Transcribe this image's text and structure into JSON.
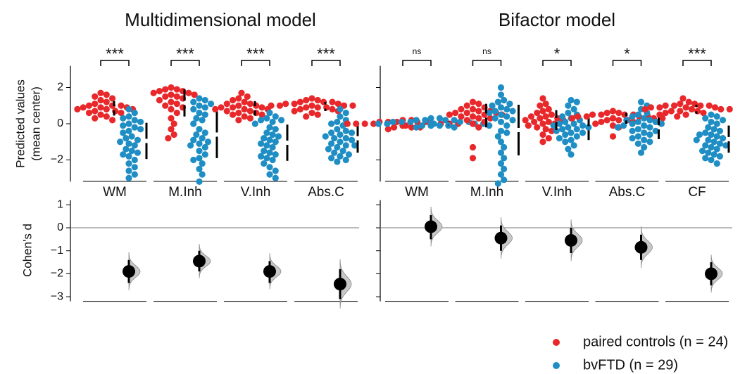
{
  "chart_data": {
    "type": "estimation",
    "legend_position": "bottom-right",
    "series": [
      {
        "name": "paired controls (n = 24)",
        "color": "#e8282b"
      },
      {
        "name": "bvFTD (n = 29)",
        "color": "#1f8ec4"
      }
    ],
    "top_ylabel": [
      "Predicted values",
      "(mean center)"
    ],
    "bottom_ylabel": "Cohen's d",
    "ylim": [
      -3.2,
      3.2
    ],
    "yticks": [
      {
        "value": -2,
        "label": "−2"
      },
      0,
      2
    ],
    "dlim": [
      -3.2,
      1.2
    ],
    "dticks": [
      1,
      0,
      {
        "value": -1,
        "label": "−1"
      },
      {
        "value": -2,
        "label": "−2"
      },
      {
        "value": -3,
        "label": "−3"
      }
    ],
    "panels": [
      {
        "title": "Multidimensional model",
        "categories": [
          "WM",
          "M.Inh",
          "V.Inh",
          "Abs.C"
        ],
        "significance": [
          "***",
          "***",
          "***",
          "***"
        ],
        "controls": [
          [
            1.7,
            1.6,
            1.5,
            1.4,
            1.3,
            1.2,
            1.1,
            1.0,
            1.0,
            0.9,
            0.9,
            0.9,
            0.8,
            0.8,
            0.8,
            0.7,
            0.7,
            0.6,
            0.6,
            0.5,
            0.4,
            0.3,
            0.2,
            1.0
          ],
          [
            2.0,
            1.9,
            1.9,
            1.8,
            1.8,
            1.7,
            1.6,
            1.6,
            1.5,
            1.5,
            1.4,
            1.3,
            1.2,
            1.1,
            1.0,
            0.9,
            0.8,
            0.6,
            0.3,
            0.0,
            -0.3,
            -0.6,
            -0.8,
            1.7
          ],
          [
            1.7,
            1.5,
            1.4,
            1.3,
            1.2,
            1.1,
            1.0,
            1.0,
            0.9,
            0.9,
            0.9,
            0.8,
            0.8,
            0.8,
            0.7,
            0.7,
            0.6,
            0.6,
            0.5,
            0.5,
            0.4,
            0.3,
            0.2,
            1.1
          ],
          [
            1.4,
            1.3,
            1.3,
            1.2,
            1.2,
            1.1,
            1.1,
            1.1,
            1.0,
            1.0,
            1.0,
            1.0,
            0.9,
            0.9,
            0.9,
            0.8,
            0.8,
            0.7,
            0.7,
            0.6,
            0.5,
            0.4,
            1.2,
            1.0
          ]
        ],
        "bvftd": [
          [
            0.8,
            0.6,
            0.4,
            0.3,
            0.2,
            0.1,
            0.0,
            -0.1,
            -0.3,
            -0.4,
            -0.5,
            -0.7,
            -0.8,
            -0.9,
            -1.0,
            -1.2,
            -1.4,
            -1.5,
            -1.6,
            -1.7,
            -1.8,
            -2.0,
            -2.2,
            -2.4,
            -2.6,
            -2.8,
            -3.0,
            -0.2,
            -1.1
          ],
          [
            1.4,
            1.3,
            1.2,
            1.0,
            0.9,
            0.8,
            0.6,
            0.3,
            0.0,
            -0.3,
            -0.6,
            -0.8,
            -0.9,
            -1.0,
            -1.2,
            -1.3,
            -1.5,
            -1.7,
            -1.9,
            -2.2,
            -2.5,
            -2.8,
            -3.2,
            -0.5,
            0.5,
            1.1,
            -1.1,
            -2.0,
            0.2
          ],
          [
            0.6,
            0.4,
            0.3,
            0.2,
            0.1,
            0.0,
            -0.2,
            -0.3,
            -0.5,
            -0.6,
            -0.8,
            -0.9,
            -1.0,
            -1.2,
            -1.3,
            -1.5,
            -1.6,
            -1.8,
            -1.9,
            -2.0,
            -2.2,
            -2.4,
            -2.6,
            -2.8,
            -3.0,
            -0.7,
            -1.1,
            0.2,
            -1.7
          ],
          [
            0.8,
            0.6,
            0.4,
            0.2,
            0.1,
            0.0,
            -0.1,
            -0.3,
            -0.4,
            -0.5,
            -0.6,
            -0.7,
            -0.8,
            -0.9,
            -1.0,
            -1.1,
            -1.2,
            -1.3,
            -1.4,
            -1.5,
            -1.6,
            -1.7,
            -1.8,
            -1.9,
            -2.0,
            -2.1,
            -0.8,
            -1.2,
            -0.5
          ]
        ],
        "controls_mean": [
          0.85,
          1.15,
          0.85,
          0.95
        ],
        "controls_sd": [
          0.4,
          0.75,
          0.4,
          0.25
        ],
        "bvftd_mean": [
          -0.95,
          -0.6,
          -1.05,
          -0.8
        ],
        "bvftd_sd": [
          1.0,
          1.3,
          1.0,
          0.8
        ],
        "d": [
          -1.9,
          -1.45,
          -1.9,
          -2.45
        ],
        "d_ci_low": [
          -2.4,
          -1.9,
          -2.4,
          -3.1
        ],
        "d_ci_high": [
          -1.4,
          -1.0,
          -1.45,
          -1.8
        ]
      },
      {
        "title": "Bifactor model",
        "categories": [
          "WM",
          "M.Inh",
          "V.Inh",
          "Abs.C",
          "CF"
        ],
        "significance": [
          "ns",
          "ns",
          "*",
          "*",
          "***"
        ],
        "controls": [
          [
            0.2,
            0.2,
            0.1,
            0.1,
            0.1,
            0.1,
            0.0,
            0.0,
            0.0,
            0.0,
            0.0,
            0.0,
            0.0,
            -0.1,
            -0.1,
            -0.1,
            -0.1,
            -0.1,
            -0.2,
            -0.2,
            -0.2,
            -0.3,
            0.1,
            0.0
          ],
          [
            1.2,
            1.1,
            1.0,
            0.9,
            0.8,
            0.8,
            0.7,
            0.7,
            0.6,
            0.6,
            0.5,
            0.5,
            0.5,
            0.4,
            0.4,
            0.3,
            0.3,
            0.2,
            0.1,
            0.0,
            -0.2,
            -1.3,
            -1.9,
            0.6
          ],
          [
            1.4,
            1.1,
            1.0,
            0.8,
            0.7,
            0.6,
            0.5,
            0.4,
            0.4,
            0.3,
            0.3,
            0.2,
            0.2,
            0.1,
            0.0,
            0.0,
            -0.1,
            -0.2,
            -0.3,
            -0.4,
            -0.6,
            -0.8,
            -1.0,
            0.1
          ],
          [
            0.7,
            0.6,
            0.6,
            0.5,
            0.5,
            0.5,
            0.4,
            0.4,
            0.4,
            0.3,
            0.3,
            0.3,
            0.2,
            0.2,
            0.2,
            0.1,
            0.1,
            0.0,
            -0.1,
            -0.2,
            -0.7,
            0.4,
            0.3,
            0.5
          ],
          [
            1.4,
            1.2,
            1.1,
            1.1,
            1.0,
            1.0,
            1.0,
            0.9,
            0.9,
            0.9,
            0.9,
            0.8,
            0.8,
            0.8,
            0.7,
            0.7,
            0.7,
            0.6,
            0.6,
            0.5,
            0.5,
            0.4,
            1.0,
            0.8
          ]
        ],
        "bvftd": [
          [
            0.3,
            0.3,
            0.2,
            0.2,
            0.2,
            0.1,
            0.1,
            0.1,
            0.1,
            0.0,
            0.0,
            0.0,
            0.0,
            0.0,
            0.0,
            0.0,
            0.0,
            -0.1,
            -0.1,
            -0.1,
            -0.1,
            -0.1,
            -0.2,
            -0.2,
            0.1,
            0.0,
            0.0,
            -0.1,
            0.2
          ],
          [
            2.0,
            1.6,
            1.3,
            1.1,
            1.0,
            0.9,
            0.8,
            0.7,
            0.6,
            0.5,
            0.4,
            0.3,
            0.1,
            -0.1,
            -0.4,
            -0.7,
            -1.0,
            -1.3,
            -1.6,
            -1.9,
            -2.2,
            -2.5,
            -2.8,
            -3.1,
            -3.3,
            0.7,
            0.2,
            -0.5,
            1.2
          ],
          [
            1.3,
            1.2,
            1.0,
            0.8,
            0.6,
            0.4,
            0.3,
            0.2,
            0.1,
            0.0,
            -0.1,
            -0.1,
            -0.2,
            -0.3,
            -0.3,
            -0.4,
            -0.5,
            -0.6,
            -0.7,
            -0.8,
            -0.9,
            -1.0,
            -1.2,
            -1.4,
            -1.7,
            -0.2,
            0.0,
            -0.5,
            0.5
          ],
          [
            1.2,
            1.0,
            0.8,
            0.6,
            0.5,
            0.4,
            0.3,
            0.2,
            0.1,
            0.0,
            0.0,
            -0.1,
            -0.2,
            -0.2,
            -0.3,
            -0.4,
            -0.5,
            -0.6,
            -0.7,
            -0.8,
            -0.9,
            -1.0,
            -1.1,
            -1.3,
            -1.6,
            -0.1,
            0.1,
            -0.4,
            0.2
          ],
          [
            0.5,
            0.4,
            0.3,
            0.2,
            0.0,
            -0.2,
            -0.3,
            -0.4,
            -0.5,
            -0.6,
            -0.7,
            -0.8,
            -0.9,
            -1.0,
            -1.1,
            -1.2,
            -1.3,
            -1.4,
            -1.5,
            -1.6,
            -1.7,
            -1.8,
            -1.9,
            -2.0,
            -2.2,
            -0.6,
            -0.9,
            -1.2,
            0.1
          ]
        ],
        "controls_mean": [
          0.0,
          0.45,
          0.2,
          0.3,
          0.8
        ],
        "controls_sd": [
          0.12,
          0.65,
          0.55,
          0.3,
          0.25
        ],
        "bvftd_mean": [
          0.03,
          -0.35,
          -0.25,
          -0.2,
          -0.85
        ],
        "bvftd_sd": [
          0.1,
          1.4,
          0.65,
          0.65,
          0.75
        ],
        "d": [
          0.05,
          -0.45,
          -0.55,
          -0.85,
          -2.0
        ],
        "d_ci_low": [
          -0.5,
          -1.0,
          -1.1,
          -1.4,
          -2.5
        ],
        "d_ci_high": [
          0.55,
          0.1,
          0.0,
          -0.3,
          -1.5
        ]
      }
    ]
  }
}
